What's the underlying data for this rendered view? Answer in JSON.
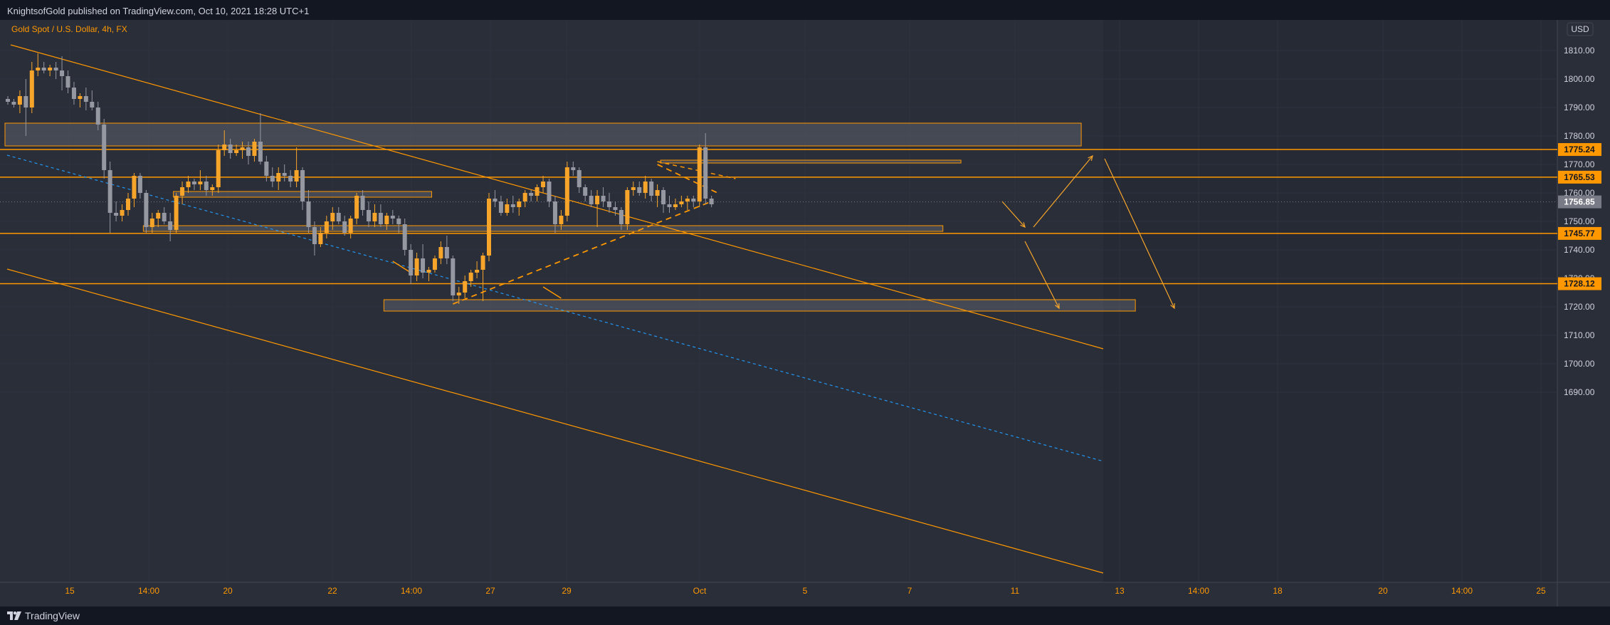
{
  "header": {
    "text": "KnightsofGold published on TradingView.com, Oct 10, 2021 18:28 UTC+1"
  },
  "footer": {
    "logo_text": "TradingView"
  },
  "colors": {
    "background": "#2a2e39",
    "bull": "#f7a52a",
    "bear": "#9598a1",
    "orange": "#ff9800",
    "blue_dash": "#2196f3",
    "axis_text": "#d1d4dc",
    "accent_text": "#ff9800"
  },
  "chart_data": {
    "type": "candlestick",
    "title": "Gold Spot / U.S. Dollar, 4h, FX",
    "currency": "USD",
    "ylim": [
      1684,
      1815
    ],
    "y_ticks": [
      "1810.00",
      "1800.00",
      "1790.00",
      "1780.00",
      "1770.00",
      "1760.00",
      "1750.00",
      "1740.00",
      "1730.00",
      "1720.00",
      "1710.00",
      "1700.00",
      "1690.00"
    ],
    "x_ticks": [
      "15",
      "14:00",
      "20",
      "22",
      "14:00",
      "27",
      "29",
      "Oct",
      "5",
      "7",
      "11",
      "13",
      "14:00",
      "18",
      "20",
      "14:00",
      "25"
    ],
    "price_labels": [
      {
        "text": "1775.24",
        "value": 1775.24,
        "style": "orange"
      },
      {
        "text": "1765.53",
        "value": 1765.53,
        "style": "orange"
      },
      {
        "text": "1756.85",
        "value": 1756.85,
        "style": "gray"
      },
      {
        "text": "1745.77",
        "value": 1745.77,
        "style": "orange"
      },
      {
        "text": "1728.12",
        "value": 1728.12,
        "style": "orange"
      }
    ],
    "horizontal_levels": [
      1775.24,
      1765.53,
      1745.77,
      1728.12
    ],
    "candles": [
      [
        1793,
        1794,
        1791,
        1792
      ],
      [
        1792,
        1793,
        1790,
        1791
      ],
      [
        1791,
        1796,
        1788,
        1794
      ],
      [
        1794,
        1800,
        1780,
        1790
      ],
      [
        1790,
        1806,
        1788,
        1803
      ],
      [
        1803,
        1809,
        1801,
        1804
      ],
      [
        1804,
        1806,
        1802,
        1803
      ],
      [
        1803,
        1805,
        1801,
        1804
      ],
      [
        1804,
        1806,
        1800,
        1803
      ],
      [
        1803,
        1808,
        1796,
        1801
      ],
      [
        1801,
        1803,
        1795,
        1797
      ],
      [
        1797,
        1799,
        1791,
        1793
      ],
      [
        1793,
        1795,
        1790,
        1794
      ],
      [
        1794,
        1797,
        1789,
        1792
      ],
      [
        1792,
        1796,
        1789,
        1790
      ],
      [
        1790,
        1792,
        1782,
        1784
      ],
      [
        1784,
        1786,
        1765,
        1768
      ],
      [
        1768,
        1771,
        1746,
        1753
      ],
      [
        1753,
        1757,
        1750,
        1752
      ],
      [
        1752,
        1756,
        1750,
        1754
      ],
      [
        1754,
        1760,
        1752,
        1758
      ],
      [
        1758,
        1767,
        1755,
        1766
      ],
      [
        1766,
        1767,
        1758,
        1760
      ],
      [
        1760,
        1761,
        1746,
        1748
      ],
      [
        1748,
        1753,
        1746,
        1751
      ],
      [
        1751,
        1754,
        1748,
        1753
      ],
      [
        1753,
        1755,
        1749,
        1750
      ],
      [
        1750,
        1753,
        1743,
        1747
      ],
      [
        1747,
        1760,
        1746,
        1759
      ],
      [
        1759,
        1764,
        1756,
        1762
      ],
      [
        1762,
        1766,
        1760,
        1764
      ],
      [
        1764,
        1765,
        1761,
        1763
      ],
      [
        1763,
        1768,
        1761,
        1764
      ],
      [
        1764,
        1766,
        1759,
        1761
      ],
      [
        1761,
        1763,
        1759,
        1762
      ],
      [
        1762,
        1777,
        1760,
        1775
      ],
      [
        1775,
        1782,
        1773,
        1777
      ],
      [
        1777,
        1779,
        1772,
        1774
      ],
      [
        1774,
        1777,
        1773,
        1775
      ],
      [
        1775,
        1778,
        1772,
        1776
      ],
      [
        1776,
        1778,
        1770,
        1773
      ],
      [
        1773,
        1779,
        1771,
        1778
      ],
      [
        1778,
        1788,
        1770,
        1771
      ],
      [
        1771,
        1773,
        1764,
        1766
      ],
      [
        1766,
        1769,
        1762,
        1764
      ],
      [
        1764,
        1769,
        1761,
        1767
      ],
      [
        1767,
        1770,
        1764,
        1766
      ],
      [
        1766,
        1768,
        1762,
        1764
      ],
      [
        1764,
        1776,
        1762,
        1768
      ],
      [
        1768,
        1769,
        1754,
        1757
      ],
      [
        1757,
        1761,
        1746,
        1748
      ],
      [
        1748,
        1750,
        1738,
        1742
      ],
      [
        1742,
        1748,
        1741,
        1746
      ],
      [
        1746,
        1752,
        1744,
        1750
      ],
      [
        1750,
        1755,
        1747,
        1753
      ],
      [
        1753,
        1755,
        1749,
        1750
      ],
      [
        1750,
        1752,
        1745,
        1746
      ],
      [
        1746,
        1752,
        1744,
        1751
      ],
      [
        1751,
        1760,
        1749,
        1759
      ],
      [
        1759,
        1761,
        1752,
        1754
      ],
      [
        1754,
        1757,
        1748,
        1750
      ],
      [
        1750,
        1756,
        1748,
        1753
      ],
      [
        1753,
        1756,
        1748,
        1749
      ],
      [
        1749,
        1753,
        1747,
        1752
      ],
      [
        1752,
        1754,
        1749,
        1751
      ],
      [
        1751,
        1752,
        1746,
        1749
      ],
      [
        1749,
        1751,
        1738,
        1740
      ],
      [
        1740,
        1742,
        1728,
        1731
      ],
      [
        1731,
        1739,
        1729,
        1737
      ],
      [
        1737,
        1742,
        1730,
        1732
      ],
      [
        1732,
        1734,
        1729,
        1733
      ],
      [
        1733,
        1738,
        1732,
        1737
      ],
      [
        1737,
        1743,
        1735,
        1741
      ],
      [
        1741,
        1745,
        1735,
        1737
      ],
      [
        1737,
        1738,
        1722,
        1724
      ],
      [
        1724,
        1727,
        1721,
        1725
      ],
      [
        1725,
        1731,
        1723,
        1729
      ],
      [
        1729,
        1733,
        1727,
        1732
      ],
      [
        1732,
        1736,
        1730,
        1733
      ],
      [
        1733,
        1739,
        1722,
        1738
      ],
      [
        1738,
        1760,
        1736,
        1758
      ],
      [
        1758,
        1761,
        1755,
        1757
      ],
      [
        1757,
        1759,
        1752,
        1753
      ],
      [
        1753,
        1758,
        1752,
        1756
      ],
      [
        1756,
        1759,
        1753,
        1755
      ],
      [
        1755,
        1758,
        1752,
        1757
      ],
      [
        1757,
        1761,
        1755,
        1760
      ],
      [
        1760,
        1761,
        1757,
        1759
      ],
      [
        1759,
        1763,
        1757,
        1762
      ],
      [
        1762,
        1766,
        1760,
        1764
      ],
      [
        1764,
        1765,
        1755,
        1757
      ],
      [
        1757,
        1759,
        1746,
        1749
      ],
      [
        1749,
        1754,
        1747,
        1752
      ],
      [
        1752,
        1771,
        1750,
        1769
      ],
      [
        1769,
        1771,
        1766,
        1768
      ],
      [
        1768,
        1769,
        1760,
        1762
      ],
      [
        1762,
        1763,
        1757,
        1759
      ],
      [
        1759,
        1761,
        1755,
        1756
      ],
      [
        1756,
        1761,
        1748,
        1759
      ],
      [
        1759,
        1762,
        1755,
        1757
      ],
      [
        1757,
        1760,
        1753,
        1755
      ],
      [
        1755,
        1757,
        1752,
        1754
      ],
      [
        1754,
        1755,
        1747,
        1749
      ],
      [
        1749,
        1762,
        1747,
        1761
      ],
      [
        1761,
        1764,
        1759,
        1762
      ],
      [
        1762,
        1764,
        1759,
        1760
      ],
      [
        1760,
        1766,
        1758,
        1764
      ],
      [
        1764,
        1765,
        1757,
        1759
      ],
      [
        1759,
        1763,
        1755,
        1761
      ],
      [
        1761,
        1762,
        1753,
        1756
      ],
      [
        1756,
        1759,
        1753,
        1755
      ],
      [
        1755,
        1758,
        1754,
        1756
      ],
      [
        1756,
        1759,
        1755,
        1757
      ],
      [
        1757,
        1759,
        1754,
        1758
      ],
      [
        1758,
        1759,
        1755,
        1757
      ],
      [
        1757,
        1777,
        1755,
        1776
      ],
      [
        1776,
        1781,
        1756,
        1758
      ],
      [
        1758,
        1759,
        1755,
        1756
      ]
    ],
    "zones": [
      {
        "x0": 0,
        "x1": 178,
        "y0": 1776.5,
        "y1": 1784.5
      },
      {
        "x0": 28,
        "x1": 70,
        "y0": 1758.5,
        "y1": 1760.5
      },
      {
        "x0": 23,
        "x1": 155,
        "y0": 1746.5,
        "y1": 1748.5
      },
      {
        "x0": 109,
        "x1": 158,
        "y0": 1770.5,
        "y1": 1771.5
      },
      {
        "x0": 63,
        "x1": 187,
        "y0": 1718.5,
        "y1": 1722.5
      }
    ]
  }
}
